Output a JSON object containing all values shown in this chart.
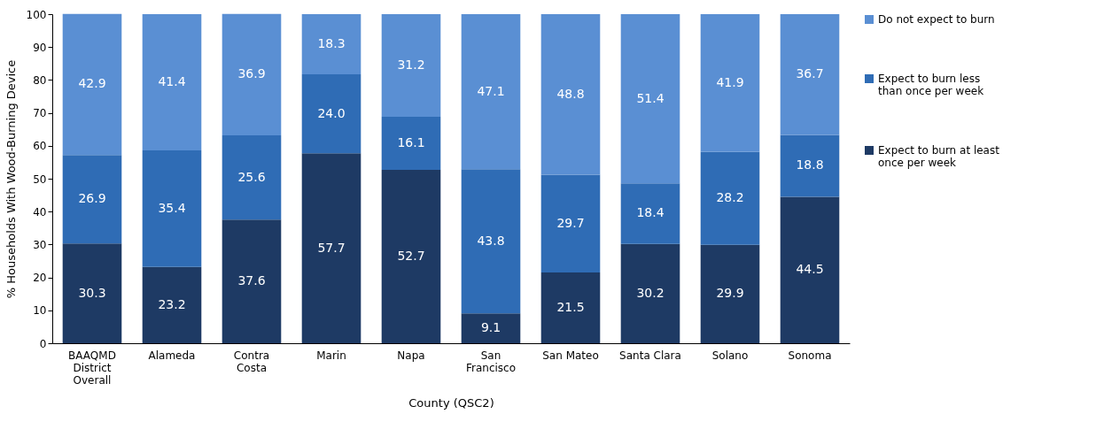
{
  "chart_data": {
    "type": "bar",
    "stacked": true,
    "xlabel": "County (QSC2)",
    "ylabel": "% Households With Wood-Burning Device",
    "categories": [
      "BAAQMD District Overall",
      "Alameda",
      "Contra Costa",
      "Marin",
      "Napa",
      "San Francisco",
      "San Mateo",
      "Santa Clara",
      "Solano",
      "Sonoma"
    ],
    "series": [
      {
        "name": "Expect to burn at least once per week",
        "color": "#1e3a64",
        "values": [
          30.3,
          23.2,
          37.6,
          57.7,
          52.7,
          9.1,
          21.5,
          30.2,
          29.9,
          44.5
        ],
        "value_labels": [
          "30.3",
          "23.2",
          "37.6",
          "57.7",
          "52.7",
          "9.1",
          "21.5",
          "30.2",
          "29.9",
          "44.5"
        ]
      },
      {
        "name": "Expect to burn less than once per week",
        "color": "#2f6cb5",
        "values": [
          26.9,
          35.4,
          25.6,
          24.0,
          16.1,
          43.8,
          29.7,
          18.4,
          28.2,
          18.8
        ],
        "value_labels": [
          "26.9",
          "35.4",
          "25.6",
          "24.0",
          "16.1",
          "43.8",
          "29.7",
          "18.4",
          "28.2",
          "18.8"
        ]
      },
      {
        "name": "Do not expect to burn",
        "color": "#5a8fd3",
        "values": [
          42.9,
          41.4,
          36.9,
          18.3,
          31.2,
          47.1,
          48.8,
          51.4,
          41.9,
          36.7
        ],
        "value_labels": [
          "42.9",
          "41.4",
          "36.9",
          "18.3",
          "31.2",
          "47.1",
          "48.8",
          "51.4",
          "41.9",
          "36.7"
        ]
      }
    ],
    "ylim": [
      0,
      100
    ],
    "yticks": [
      0,
      10,
      20,
      30,
      40,
      50,
      60,
      70,
      80,
      90,
      100
    ],
    "grid": false,
    "legend": "right"
  }
}
